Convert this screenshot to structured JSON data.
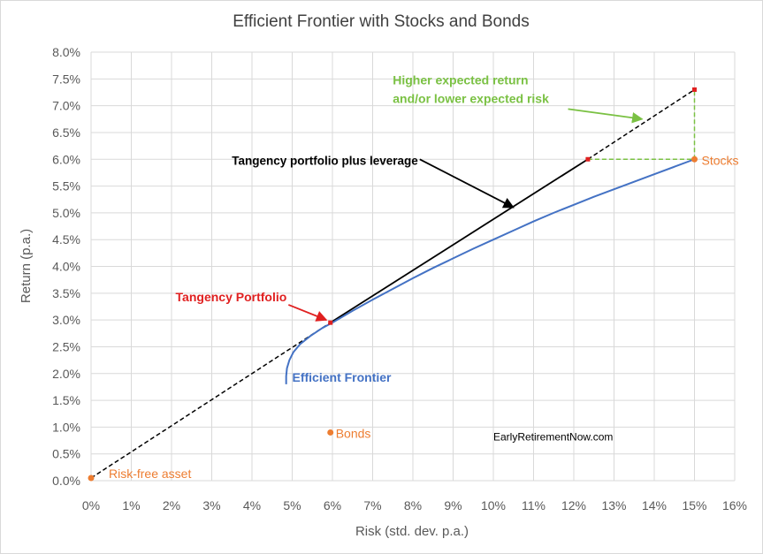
{
  "chart_data": {
    "type": "scatter",
    "title": "Efficient Frontier with Stocks and Bonds",
    "xlabel": "Risk (std. dev. p.a.)",
    "ylabel": "Return (p.a.)",
    "xlim": [
      0,
      16
    ],
    "ylim": [
      0,
      8
    ],
    "x_ticks": [
      0,
      1,
      2,
      3,
      4,
      5,
      6,
      7,
      8,
      9,
      10,
      11,
      12,
      13,
      14,
      15,
      16
    ],
    "x_tick_labels": [
      "0%",
      "1%",
      "2%",
      "3%",
      "4%",
      "5%",
      "6%",
      "7%",
      "8%",
      "9%",
      "10%",
      "11%",
      "12%",
      "13%",
      "14%",
      "15%",
      "16%"
    ],
    "y_ticks": [
      0,
      0.5,
      1,
      1.5,
      2,
      2.5,
      3,
      3.5,
      4,
      4.5,
      5,
      5.5,
      6,
      6.5,
      7,
      7.5,
      8
    ],
    "y_tick_labels": [
      "0.0%",
      "0.5%",
      "1.0%",
      "1.5%",
      "2.0%",
      "2.5%",
      "3.0%",
      "3.5%",
      "4.0%",
      "4.5%",
      "5.0%",
      "5.5%",
      "6.0%",
      "6.5%",
      "7.0%",
      "7.5%",
      "8.0%"
    ],
    "grid": true,
    "legend": "none",
    "colors": {
      "frontier": "#4472c4",
      "assets": "#ed7d31",
      "tangency": "#e02020",
      "leverage": "#000000",
      "gain": "#7ac143",
      "grid": "#d9d9d9",
      "axis_text": "#595959",
      "title_text": "#404040"
    },
    "series": [
      {
        "name": "Efficient Frontier",
        "x": [
          4.85,
          4.85,
          4.87,
          4.93,
          5.03,
          5.2,
          5.45,
          5.75,
          6.0,
          6.5,
          7.0,
          7.5,
          8.0,
          8.5,
          9.0,
          9.5,
          10.0,
          10.5,
          11.0,
          11.5,
          12.0,
          12.5,
          13.0,
          13.5,
          14.0,
          14.5,
          15.0
        ],
        "y": [
          1.8,
          1.95,
          2.1,
          2.25,
          2.4,
          2.55,
          2.7,
          2.85,
          2.95,
          3.17,
          3.38,
          3.58,
          3.78,
          3.97,
          4.15,
          4.33,
          4.5,
          4.67,
          4.84,
          5.0,
          5.15,
          5.3,
          5.44,
          5.58,
          5.72,
          5.86,
          6.0
        ]
      }
    ],
    "lines": [
      {
        "name": "Tangency portfolio plus leverage",
        "from": [
          5.95,
          2.95
        ],
        "to": [
          12.35,
          6.0
        ],
        "style": "solid"
      },
      {
        "name": "Capital market line below tangency",
        "from": [
          0,
          0.05
        ],
        "to": [
          5.95,
          2.95
        ],
        "style": "dashed"
      },
      {
        "name": "Leveraged extension",
        "from": [
          12.35,
          6.0
        ],
        "to": [
          15.0,
          7.3
        ],
        "style": "dashed"
      },
      {
        "name": "Return gap",
        "from": [
          12.35,
          6.0
        ],
        "to": [
          15.0,
          6.0
        ],
        "style": "dashed"
      },
      {
        "name": "Risk gap",
        "from": [
          15.0,
          6.0
        ],
        "to": [
          15.0,
          7.3
        ],
        "style": "dashed"
      }
    ],
    "points": [
      {
        "name": "Risk-free asset",
        "x": 0,
        "y": 0.05
      },
      {
        "name": "Bonds",
        "x": 5.95,
        "y": 0.9
      },
      {
        "name": "Stocks",
        "x": 15.0,
        "y": 6.0
      },
      {
        "name": "Tangency Portfolio",
        "x": 5.95,
        "y": 2.95
      },
      {
        "name": "Leveraged point",
        "x": 12.35,
        "y": 6.0
      },
      {
        "name": "Leveraged end",
        "x": 15.0,
        "y": 7.3
      }
    ],
    "annotations": [
      {
        "text": "Tangency Portfolio",
        "x": 2.1,
        "y": 3.35,
        "arrow_to": [
          5.85,
          3.0
        ]
      },
      {
        "text": "Tangency portfolio plus leverage",
        "x": 3.5,
        "y": 5.9,
        "arrow_to": [
          10.5,
          5.1
        ]
      },
      {
        "text": "Higher expected return",
        "x": 7.5,
        "y": 7.4,
        "arrow_to": [
          13.7,
          6.75
        ]
      },
      {
        "text": "and/or lower expected risk",
        "x": 7.5,
        "y": 7.05
      },
      {
        "text": "Efficient Frontier",
        "x": 5.0,
        "y": 1.85
      },
      {
        "text": "EarlyRetirementNow.com",
        "x": 10.0,
        "y": 0.75
      }
    ]
  }
}
